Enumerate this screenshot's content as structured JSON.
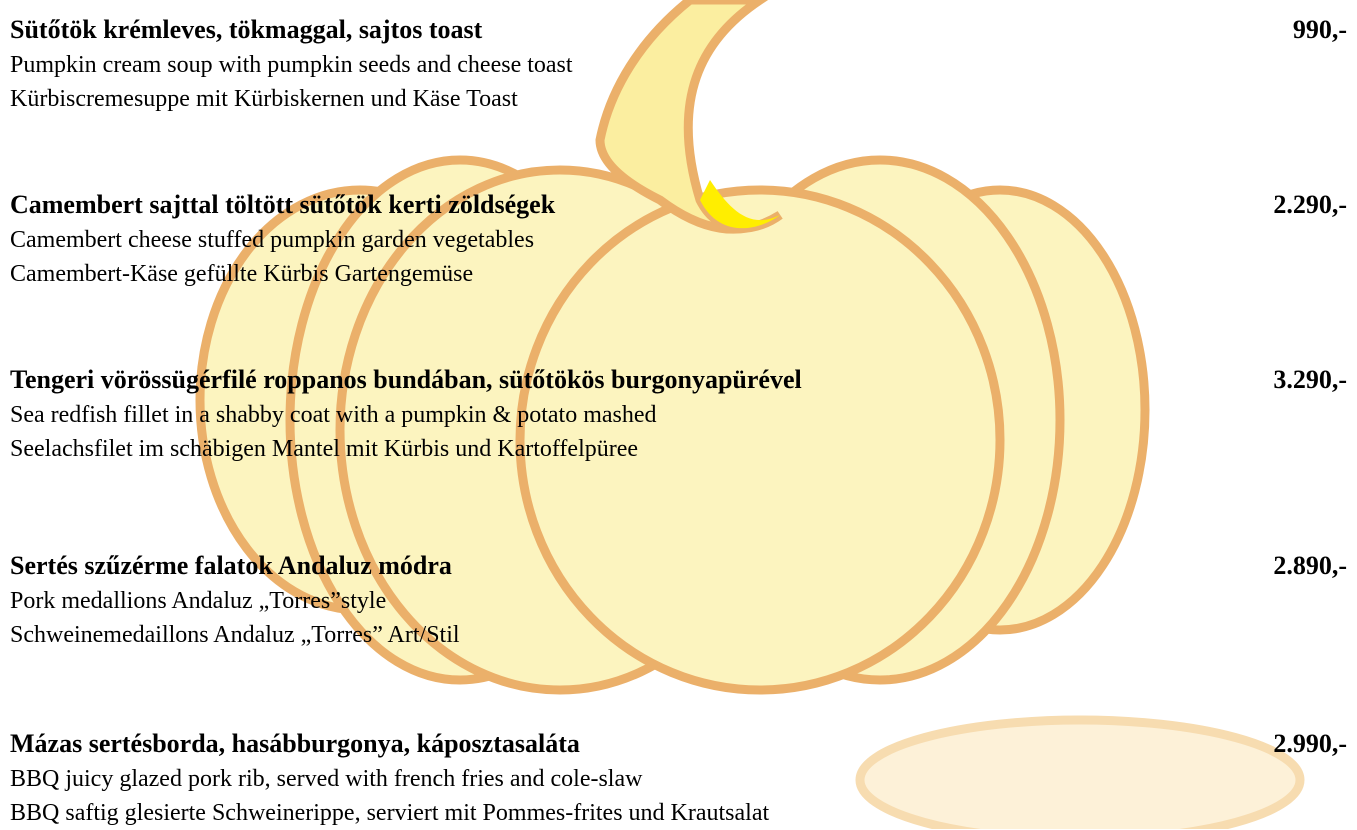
{
  "items": [
    {
      "name": "Sütőtök krémleves, tökmaggal, sajtos toast",
      "price": "990,-",
      "en": "Pumpkin cream soup with pumpkin seeds and cheese toast",
      "de": "Kürbiscremesuppe mit Kürbiskernen und Käse Toast"
    },
    {
      "name": "Camembert sajttal töltött sütőtök kerti zöldségek",
      "price": "2.290,-",
      "en": "Camembert cheese stuffed pumpkin garden vegetables",
      "de": "Camembert-Käse gefüllte Kürbis Gartengemüse"
    },
    {
      "name": "Tengeri vörössügérfilé roppanos bundában, sütőtökös burgonyapürével",
      "price": "3.290,-",
      "en": "Sea redfish fillet in a shabby coat with a pumpkin & potato mashed",
      "de": "Seelachsfilet im schäbigen Mantel mit Kürbis und Kartoffelpüree"
    },
    {
      "name": "Sertés szűzérme falatok Andaluz módra",
      "price": "2.890,-",
      "en": "Pork medallions Andaluz „Torres”style",
      "de": "Schweinemedaillons Andaluz „Torres” Art/Stil"
    },
    {
      "name": "Mázas sertésborda, hasábburgonya, káposztasaláta",
      "price": "2.990,-",
      "en": "BBQ juicy glazed pork rib, served with french fries and cole-slaw",
      "de": "BBQ saftig glesierte Schweinerippe, serviert mit Pommes-frites und Krautsalat"
    }
  ]
}
